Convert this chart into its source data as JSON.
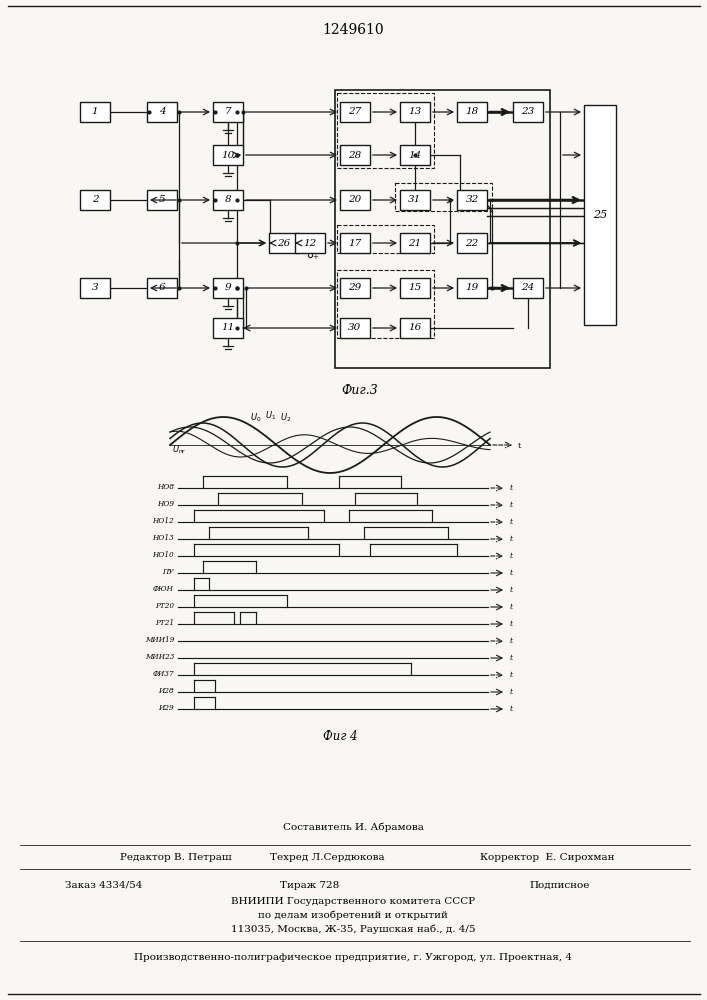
{
  "title": "1249610",
  "fig3_label": "Фиг.3",
  "fig4_label": "Фиг 4",
  "background_color": "#f8f7f4",
  "line_color": "#1a1a1a",
  "editor_line": "Редактор В. Петраш",
  "composer_line": "Составитель И. Абрамова",
  "techred_line": "Техред Л.Сердюкова",
  "corrector_line": "Корректор  Е. Сирохман",
  "order_line": "Заказ 4334/54",
  "tirazh_line": "Тираж 728",
  "podpisnoe_line": "Подписное",
  "vniipo_line": "ВНИИПИ Государственного комитета СССР",
  "vniipo2_line": "по делам изобретений и открытий",
  "address_line": "113035, Москва, Ж-35, Раушская наб., д. 4/5",
  "factory_line": "Производственно-полиграфическое предприятие, г. Ужгород, ул. Проектная, 4"
}
